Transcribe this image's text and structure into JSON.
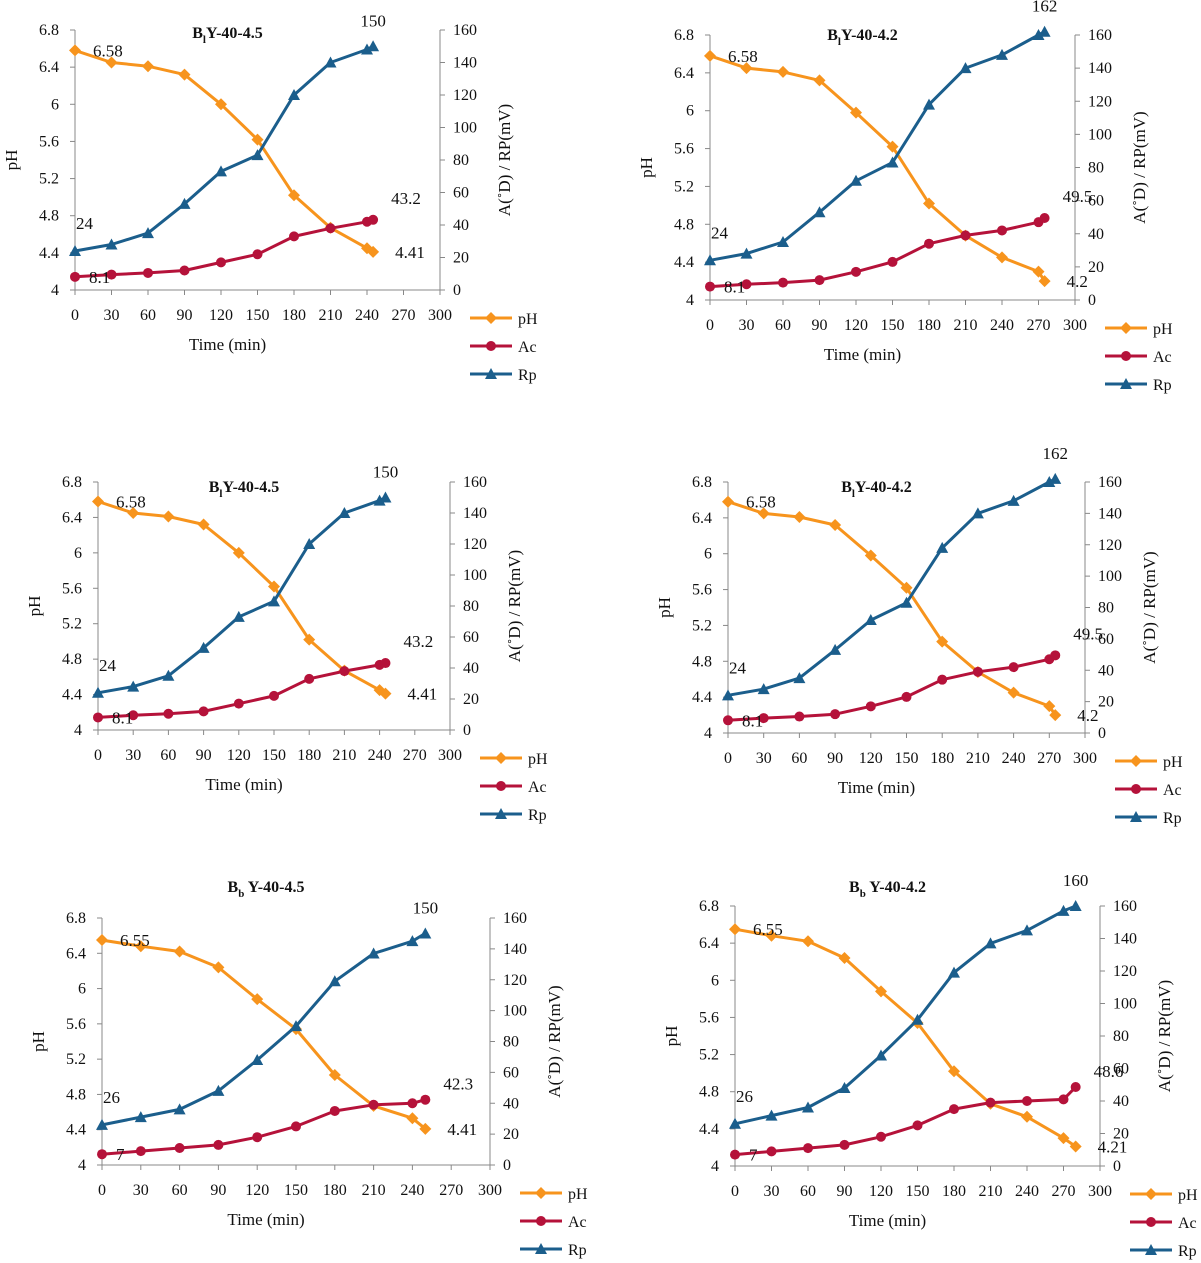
{
  "colors": {
    "pH": "#F7941D",
    "Ac": "#B5123A",
    "Rp": "#1B5E8C"
  },
  "chart_data": [
    {
      "type": "line",
      "title_main": "B",
      "title_sub": "l",
      "title_rest": "Y-40-4.5",
      "xlabel": "Time (min)",
      "ylabel": "pH",
      "y2label": "A(˚D) / RP(mV)",
      "x_ticks": [
        "0",
        "30",
        "60",
        "90",
        "120",
        "150",
        "180",
        "210",
        "240",
        "270",
        "300"
      ],
      "y_ticks": [
        "4",
        "4.4",
        "4.8",
        "5.2",
        "5.6",
        "6",
        "6.4",
        "6.8"
      ],
      "y2_ticks": [
        "0",
        "20",
        "40",
        "60",
        "80",
        "100",
        "120",
        "140",
        "160"
      ],
      "xlim": [
        0,
        300
      ],
      "ylim": [
        4,
        6.8
      ],
      "y2lim": [
        0,
        160
      ],
      "legend": [
        "pH",
        "Ac",
        "Rp"
      ],
      "annotations": {
        "ph_start": "6.58",
        "ph_end": "4.41",
        "ac_start": "8.1",
        "ac_end": "43.2",
        "rp_start": "24",
        "rp_end": "150"
      },
      "series": [
        {
          "name": "pH",
          "axis": "left",
          "x": [
            0,
            30,
            60,
            90,
            120,
            150,
            180,
            210,
            240,
            245
          ],
          "y": [
            6.58,
            6.45,
            6.41,
            6.32,
            6.0,
            5.62,
            5.02,
            4.67,
            4.45,
            4.41
          ]
        },
        {
          "name": "Ac",
          "axis": "right",
          "x": [
            0,
            30,
            60,
            90,
            120,
            150,
            180,
            210,
            240,
            245
          ],
          "y": [
            8.1,
            9.5,
            10.5,
            12,
            17,
            22,
            33,
            38,
            42,
            43.2
          ]
        },
        {
          "name": "Rp",
          "axis": "right",
          "x": [
            0,
            30,
            60,
            90,
            120,
            150,
            180,
            210,
            240,
            245
          ],
          "y": [
            24,
            28,
            35,
            53,
            73,
            83,
            120,
            140,
            148,
            150
          ]
        }
      ]
    },
    {
      "type": "line",
      "title_main": "B",
      "title_sub": "l",
      "title_rest": "Y-40-4.2",
      "xlabel": "Time (min)",
      "ylabel": "pH",
      "y2label": "A(˚D) / RP(mV)",
      "x_ticks": [
        "0",
        "30",
        "60",
        "90",
        "120",
        "150",
        "180",
        "210",
        "240",
        "270",
        "300"
      ],
      "y_ticks": [
        "4",
        "4.4",
        "4.8",
        "5.2",
        "5.6",
        "6",
        "6.4",
        "6.8"
      ],
      "y2_ticks": [
        "0",
        "20",
        "40",
        "60",
        "80",
        "100",
        "120",
        "140",
        "160"
      ],
      "xlim": [
        0,
        300
      ],
      "ylim": [
        4,
        6.8
      ],
      "y2lim": [
        0,
        160
      ],
      "legend": [
        "pH",
        "Ac",
        "Rp"
      ],
      "annotations": {
        "ph_start": "6.58",
        "ph_end": "4.2",
        "ac_start": "8.1",
        "ac_end": "49.5",
        "rp_start": "24",
        "rp_end": "162"
      },
      "series": [
        {
          "name": "pH",
          "axis": "left",
          "x": [
            0,
            30,
            60,
            90,
            120,
            150,
            180,
            210,
            240,
            270,
            275
          ],
          "y": [
            6.58,
            6.45,
            6.41,
            6.32,
            5.98,
            5.62,
            5.02,
            4.68,
            4.45,
            4.3,
            4.2
          ]
        },
        {
          "name": "Ac",
          "axis": "right",
          "x": [
            0,
            30,
            60,
            90,
            120,
            150,
            180,
            210,
            240,
            270,
            275
          ],
          "y": [
            8.1,
            9.5,
            10.5,
            12,
            17,
            23,
            34,
            39,
            42,
            47,
            49.5
          ]
        },
        {
          "name": "Rp",
          "axis": "right",
          "x": [
            0,
            30,
            60,
            90,
            120,
            150,
            180,
            210,
            240,
            270,
            275
          ],
          "y": [
            24,
            28,
            35,
            53,
            72,
            83,
            118,
            140,
            148,
            160,
            162
          ]
        }
      ]
    },
    {
      "type": "line",
      "title_main": "B",
      "title_sub": "l",
      "title_rest": "Y-40-4.5",
      "xlabel": "Time (min)",
      "ylabel": "pH",
      "y2label": "A(˚D) / RP(mV)",
      "x_ticks": [
        "0",
        "30",
        "60",
        "90",
        "120",
        "150",
        "180",
        "210",
        "240",
        "270",
        "300"
      ],
      "y_ticks": [
        "4",
        "4.4",
        "4.8",
        "5.2",
        "5.6",
        "6",
        "6.4",
        "6.8"
      ],
      "y2_ticks": [
        "0",
        "20",
        "40",
        "60",
        "80",
        "100",
        "120",
        "140",
        "160"
      ],
      "xlim": [
        0,
        300
      ],
      "ylim": [
        4,
        6.8
      ],
      "y2lim": [
        0,
        160
      ],
      "legend": [
        "pH",
        "Ac",
        "Rp"
      ],
      "annotations": {
        "ph_start": "6.58",
        "ph_end": "4.41",
        "ac_start": "8.1",
        "ac_end": "43.2",
        "rp_start": "24",
        "rp_end": "150"
      },
      "series": [
        {
          "name": "pH",
          "axis": "left",
          "x": [
            0,
            30,
            60,
            90,
            120,
            150,
            180,
            210,
            240,
            245
          ],
          "y": [
            6.58,
            6.45,
            6.41,
            6.32,
            6.0,
            5.62,
            5.02,
            4.67,
            4.45,
            4.41
          ]
        },
        {
          "name": "Ac",
          "axis": "right",
          "x": [
            0,
            30,
            60,
            90,
            120,
            150,
            180,
            210,
            240,
            245
          ],
          "y": [
            8.1,
            9.5,
            10.5,
            12,
            17,
            22,
            33,
            38,
            42,
            43.2
          ]
        },
        {
          "name": "Rp",
          "axis": "right",
          "x": [
            0,
            30,
            60,
            90,
            120,
            150,
            180,
            210,
            240,
            245
          ],
          "y": [
            24,
            28,
            35,
            53,
            73,
            83,
            120,
            140,
            148,
            150
          ]
        }
      ]
    },
    {
      "type": "line",
      "title_main": "B",
      "title_sub": "l",
      "title_rest": "Y-40-4.2",
      "xlabel": "Time (min)",
      "ylabel": "pH",
      "y2label": "A(˚D) / RP(mV)",
      "x_ticks": [
        "0",
        "30",
        "60",
        "90",
        "120",
        "150",
        "180",
        "210",
        "240",
        "270",
        "300"
      ],
      "y_ticks": [
        "4",
        "4.4",
        "4.8",
        "5.2",
        "5.6",
        "6",
        "6.4",
        "6.8"
      ],
      "y2_ticks": [
        "0",
        "20",
        "40",
        "60",
        "80",
        "100",
        "120",
        "140",
        "160"
      ],
      "xlim": [
        0,
        300
      ],
      "ylim": [
        4,
        6.8
      ],
      "y2lim": [
        0,
        160
      ],
      "legend": [
        "pH",
        "Ac",
        "Rp"
      ],
      "annotations": {
        "ph_start": "6.58",
        "ph_end": "4.2",
        "ac_start": "8.1",
        "ac_end": "49.5",
        "rp_start": "24",
        "rp_end": "162"
      },
      "series": [
        {
          "name": "pH",
          "axis": "left",
          "x": [
            0,
            30,
            60,
            90,
            120,
            150,
            180,
            210,
            240,
            270,
            275
          ],
          "y": [
            6.58,
            6.45,
            6.41,
            6.32,
            5.98,
            5.62,
            5.02,
            4.68,
            4.45,
            4.3,
            4.2
          ]
        },
        {
          "name": "Ac",
          "axis": "right",
          "x": [
            0,
            30,
            60,
            90,
            120,
            150,
            180,
            210,
            240,
            270,
            275
          ],
          "y": [
            8.1,
            9.5,
            10.5,
            12,
            17,
            23,
            34,
            39,
            42,
            47,
            49.5
          ]
        },
        {
          "name": "Rp",
          "axis": "right",
          "x": [
            0,
            30,
            60,
            90,
            120,
            150,
            180,
            210,
            240,
            270,
            275
          ],
          "y": [
            24,
            28,
            35,
            53,
            72,
            83,
            118,
            140,
            148,
            160,
            162
          ]
        }
      ]
    },
    {
      "type": "line",
      "title_main": "B",
      "title_sub": "b",
      "title_rest": " Y-40-4.5",
      "xlabel": "Time (min)",
      "ylabel": "pH",
      "y2label": "A(˚D) / RP(mV)",
      "x_ticks": [
        "0",
        "30",
        "60",
        "90",
        "120",
        "150",
        "180",
        "210",
        "240",
        "270",
        "300"
      ],
      "y_ticks": [
        "4",
        "4.4",
        "4.8",
        "5.2",
        "5.6",
        "6",
        "6.4",
        "6.8"
      ],
      "y2_ticks": [
        "0",
        "20",
        "40",
        "60",
        "80",
        "100",
        "120",
        "140",
        "160"
      ],
      "xlim": [
        0,
        300
      ],
      "ylim": [
        4,
        6.8
      ],
      "y2lim": [
        0,
        160
      ],
      "legend": [
        "pH",
        "Ac",
        "Rp"
      ],
      "annotations": {
        "ph_start": "6.55",
        "ph_end": "4.41",
        "ac_start": "7",
        "ac_end": "42.3",
        "rp_start": "26",
        "rp_end": "150"
      },
      "series": [
        {
          "name": "pH",
          "axis": "left",
          "x": [
            0,
            30,
            60,
            90,
            120,
            150,
            180,
            210,
            240,
            250
          ],
          "y": [
            6.55,
            6.48,
            6.42,
            6.24,
            5.88,
            5.54,
            5.02,
            4.67,
            4.53,
            4.41
          ]
        },
        {
          "name": "Ac",
          "axis": "right",
          "x": [
            0,
            30,
            60,
            90,
            120,
            150,
            180,
            210,
            240,
            250
          ],
          "y": [
            7,
            9,
            11,
            13,
            18,
            25,
            35,
            39,
            40,
            42.3
          ]
        },
        {
          "name": "Rp",
          "axis": "right",
          "x": [
            0,
            30,
            60,
            90,
            120,
            150,
            180,
            210,
            240,
            250
          ],
          "y": [
            26,
            31,
            36,
            48,
            68,
            90,
            119,
            137,
            145,
            150
          ]
        }
      ]
    },
    {
      "type": "line",
      "title_main": "B",
      "title_sub": "b",
      "title_rest": " Y-40-4.2",
      "xlabel": "Time (min)",
      "ylabel": "pH",
      "y2label": "A(˚D) / RP(mV)",
      "x_ticks": [
        "0",
        "30",
        "60",
        "90",
        "120",
        "150",
        "180",
        "210",
        "240",
        "270",
        "300"
      ],
      "y_ticks": [
        "4",
        "4.4",
        "4.8",
        "5.2",
        "5.6",
        "6",
        "6.4",
        "6.8"
      ],
      "y2_ticks": [
        "0",
        "20",
        "40",
        "60",
        "80",
        "100",
        "120",
        "140",
        "160"
      ],
      "xlim": [
        0,
        300
      ],
      "ylim": [
        4,
        6.8
      ],
      "y2lim": [
        0,
        160
      ],
      "legend": [
        "pH",
        "Ac",
        "Rp"
      ],
      "annotations": {
        "ph_start": "6.55",
        "ph_end": "4.21",
        "ac_start": "7",
        "ac_end": "48.6",
        "rp_start": "26",
        "rp_end": "160"
      },
      "series": [
        {
          "name": "pH",
          "axis": "left",
          "x": [
            0,
            30,
            60,
            90,
            120,
            150,
            180,
            210,
            240,
            270,
            280
          ],
          "y": [
            6.55,
            6.48,
            6.42,
            6.24,
            5.88,
            5.54,
            5.02,
            4.67,
            4.53,
            4.3,
            4.21
          ]
        },
        {
          "name": "Ac",
          "axis": "right",
          "x": [
            0,
            30,
            60,
            90,
            120,
            150,
            180,
            210,
            240,
            270,
            280
          ],
          "y": [
            7,
            9,
            11,
            13,
            18,
            25,
            35,
            39,
            40,
            41,
            48.6
          ]
        },
        {
          "name": "Rp",
          "axis": "right",
          "x": [
            0,
            30,
            60,
            90,
            120,
            150,
            180,
            210,
            240,
            270,
            280
          ],
          "y": [
            26,
            31,
            36,
            48,
            68,
            90,
            119,
            137,
            145,
            157,
            160
          ]
        }
      ]
    }
  ]
}
